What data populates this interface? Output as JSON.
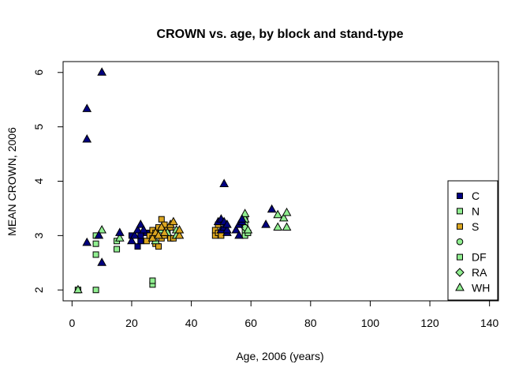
{
  "chart_data": {
    "type": "scatter",
    "title": "CROWN vs. age, by block and stand-type",
    "xlabel": "Age, 2006 (years)",
    "ylabel": "MEAN CROWN, 2006",
    "xlim": [
      -3,
      143
    ],
    "ylim": [
      1.8,
      6.2
    ],
    "xticks": [
      0,
      20,
      40,
      60,
      80,
      100,
      120,
      140
    ],
    "yticks": [
      2,
      3,
      4,
      5,
      6
    ],
    "grid": false,
    "legend_position": "bottom-right",
    "series": [
      {
        "name": "C",
        "shape": "square",
        "color": "#000080",
        "x": [
          2,
          22,
          23,
          23,
          25,
          20
        ],
        "y": [
          2.0,
          2.8,
          2.9,
          3.0,
          3.05,
          3.0
        ]
      },
      {
        "name": "N",
        "shape": "square",
        "color": "#90ee90",
        "x": [
          2,
          8,
          8,
          8,
          8,
          15,
          15,
          27,
          27
        ],
        "y": [
          2.0,
          2.0,
          2.65,
          2.85,
          3.0,
          2.75,
          2.9,
          2.1,
          2.17
        ]
      },
      {
        "name": "S",
        "shape": "square",
        "color": "#daa520",
        "x": [
          25,
          26,
          27,
          27,
          28,
          28,
          29,
          29,
          30,
          30,
          30,
          31,
          31,
          32,
          33,
          33,
          34,
          48,
          48,
          49,
          49,
          50
        ],
        "y": [
          2.9,
          3.0,
          2.95,
          3.1,
          2.85,
          3.05,
          2.8,
          3.15,
          2.95,
          3.1,
          3.3,
          3.0,
          3.2,
          3.1,
          2.95,
          3.15,
          2.95,
          3.0,
          3.1,
          3.05,
          3.2,
          3.0
        ]
      },
      {
        "name": "",
        "shape": "circle",
        "color": "#90ee90",
        "x": [],
        "y": []
      },
      {
        "name": "DF",
        "shape": "square",
        "color": "#90ee90",
        "x": [
          58,
          58,
          58,
          58,
          59
        ],
        "y": [
          3.0,
          3.1,
          3.2,
          3.3,
          3.05
        ]
      },
      {
        "name": "RA",
        "shape": "diamond",
        "color": "#90ee90",
        "x": [
          58
        ],
        "y": [
          3.15
        ]
      },
      {
        "name": "WH",
        "shape": "triangle",
        "color": "#90ee90",
        "x": [
          2,
          10,
          16,
          28,
          30,
          32,
          35,
          35,
          58,
          58,
          59,
          69,
          69,
          71,
          72,
          72
        ],
        "y": [
          2.0,
          3.1,
          2.95,
          2.9,
          3.1,
          3.05,
          3.0,
          3.1,
          3.3,
          3.4,
          3.1,
          3.15,
          3.38,
          3.32,
          3.42,
          3.15
        ]
      },
      {
        "name": "",
        "shape": "triangle",
        "color": "#000080",
        "x": [
          5,
          5,
          5,
          9,
          10,
          10,
          16,
          20,
          21,
          22,
          23,
          24,
          49,
          50,
          50,
          51,
          51,
          51,
          52,
          52,
          52,
          55,
          56,
          56,
          57,
          57,
          65,
          67
        ],
        "y": [
          5.33,
          4.77,
          2.87,
          3.0,
          6.0,
          2.5,
          3.05,
          2.9,
          3.0,
          3.1,
          3.2,
          3.1,
          3.25,
          3.1,
          3.3,
          3.15,
          3.25,
          3.95,
          3.05,
          3.1,
          3.2,
          3.1,
          3.0,
          3.2,
          3.25,
          3.3,
          3.2,
          3.48
        ]
      },
      {
        "name": "",
        "shape": "triangle",
        "color": "#daa520",
        "x": [
          27,
          28,
          29,
          30,
          31,
          33,
          34,
          36,
          36
        ],
        "y": [
          2.95,
          3.05,
          3.0,
          3.15,
          3.05,
          3.2,
          3.25,
          3.0,
          3.1
        ]
      }
    ],
    "legend": [
      {
        "label": "C",
        "shape": "square",
        "color": "#000080"
      },
      {
        "label": "N",
        "shape": "square",
        "color": "#90ee90"
      },
      {
        "label": "S",
        "shape": "square",
        "color": "#daa520"
      },
      {
        "label": "",
        "shape": "circle",
        "color": "#90ee90"
      },
      {
        "label": "DF",
        "shape": "square",
        "color": "#90ee90"
      },
      {
        "label": "RA",
        "shape": "diamond",
        "color": "#90ee90"
      },
      {
        "label": "WH",
        "shape": "triangle",
        "color": "#90ee90"
      }
    ]
  }
}
